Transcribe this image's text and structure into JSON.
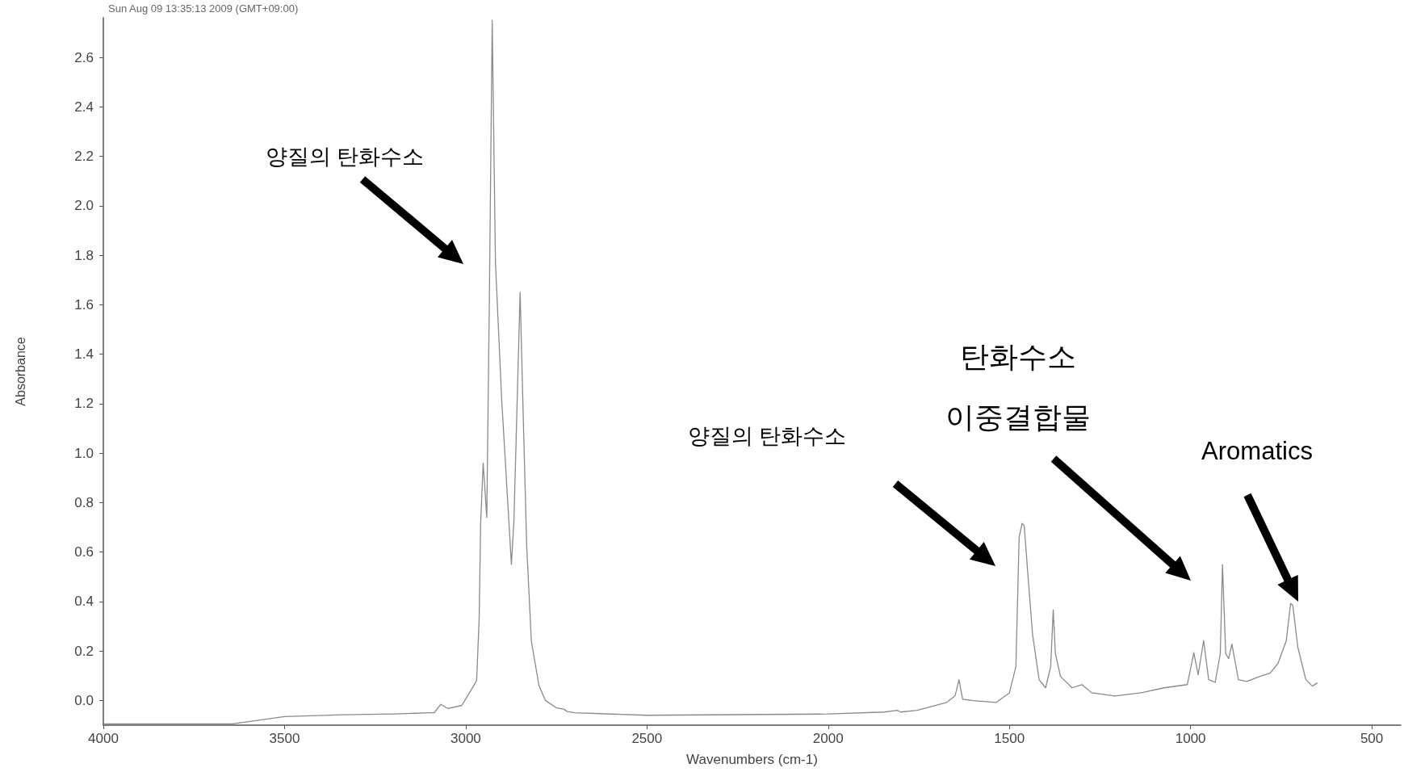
{
  "chart_data": {
    "type": "line",
    "xlabel": "Wavenumbers (cm-1)",
    "ylabel": "Absorbance",
    "xlim": [
      4000,
      420
    ],
    "xticks": [
      4000,
      3500,
      3000,
      2500,
      2000,
      1500,
      1000,
      500
    ],
    "ylim": [
      -0.1,
      2.76
    ],
    "yticks": [
      {
        "value": 0,
        "label": "0.0"
      },
      0.2,
      0.4,
      0.6,
      0.8,
      {
        "value": 1,
        "label": "1.0"
      },
      1.2,
      1.4,
      1.6,
      1.8,
      {
        "value": 2,
        "label": "2.0"
      },
      2.2,
      2.4,
      2.6
    ],
    "grid": false,
    "marker": "none",
    "line_style": "solid",
    "annotations": [
      "Sun Aug 09 13:35:13 2009 (GMT+09:00)",
      "양질의 탄화수소",
      "양질의 탄화수소",
      "탄화수소\n이중결합물",
      "Aromatics"
    ],
    "series": [
      {
        "color": "#8a8a8a",
        "x": [
          4000,
          3643,
          3500,
          3340,
          3200,
          3100,
          3087,
          3069,
          3049,
          3011,
          2990,
          2970,
          2963,
          2959,
          2952,
          2942,
          2935,
          2927,
          2918,
          2901,
          2874,
          2867,
          2850,
          2843,
          2832,
          2819,
          2798,
          2780,
          2750,
          2730,
          2720,
          2700,
          2500,
          2000,
          1845,
          1810,
          1800,
          1755,
          1673,
          1650,
          1639,
          1629,
          1600,
          1536,
          1500,
          1482,
          1473,
          1465,
          1459,
          1450,
          1436,
          1418,
          1400,
          1386,
          1379,
          1373,
          1359,
          1327,
          1300,
          1273,
          1209,
          1136,
          1073,
          1009,
          991,
          979,
          964,
          950,
          932,
          918,
          912,
          903,
          895,
          886,
          868,
          845,
          809,
          781,
          759,
          736,
          724,
          718,
          704,
          682,
          664,
          650
        ],
        "values": [
          -0.095,
          -0.095,
          -0.065,
          -0.058,
          -0.055,
          -0.05,
          -0.05,
          -0.016,
          -0.033,
          -0.02,
          0.03,
          0.08,
          0.33,
          0.71,
          0.96,
          0.74,
          1.6,
          2.75,
          1.77,
          1.22,
          0.55,
          0.73,
          1.65,
          1.24,
          0.63,
          0.24,
          0.06,
          0.0,
          -0.03,
          -0.035,
          -0.045,
          -0.05,
          -0.06,
          -0.055,
          -0.047,
          -0.04,
          -0.047,
          -0.04,
          -0.008,
          0.018,
          0.084,
          0.005,
          -0.001,
          -0.008,
          0.03,
          0.136,
          0.66,
          0.716,
          0.706,
          0.53,
          0.267,
          0.084,
          0.051,
          0.136,
          0.366,
          0.189,
          0.097,
          0.051,
          0.064,
          0.031,
          0.018,
          0.031,
          0.051,
          0.064,
          0.193,
          0.104,
          0.242,
          0.084,
          0.073,
          0.189,
          0.549,
          0.189,
          0.169,
          0.228,
          0.084,
          0.077,
          0.097,
          0.11,
          0.149,
          0.241,
          0.392,
          0.385,
          0.215,
          0.084,
          0.058,
          0.071
        ]
      }
    ]
  }
}
